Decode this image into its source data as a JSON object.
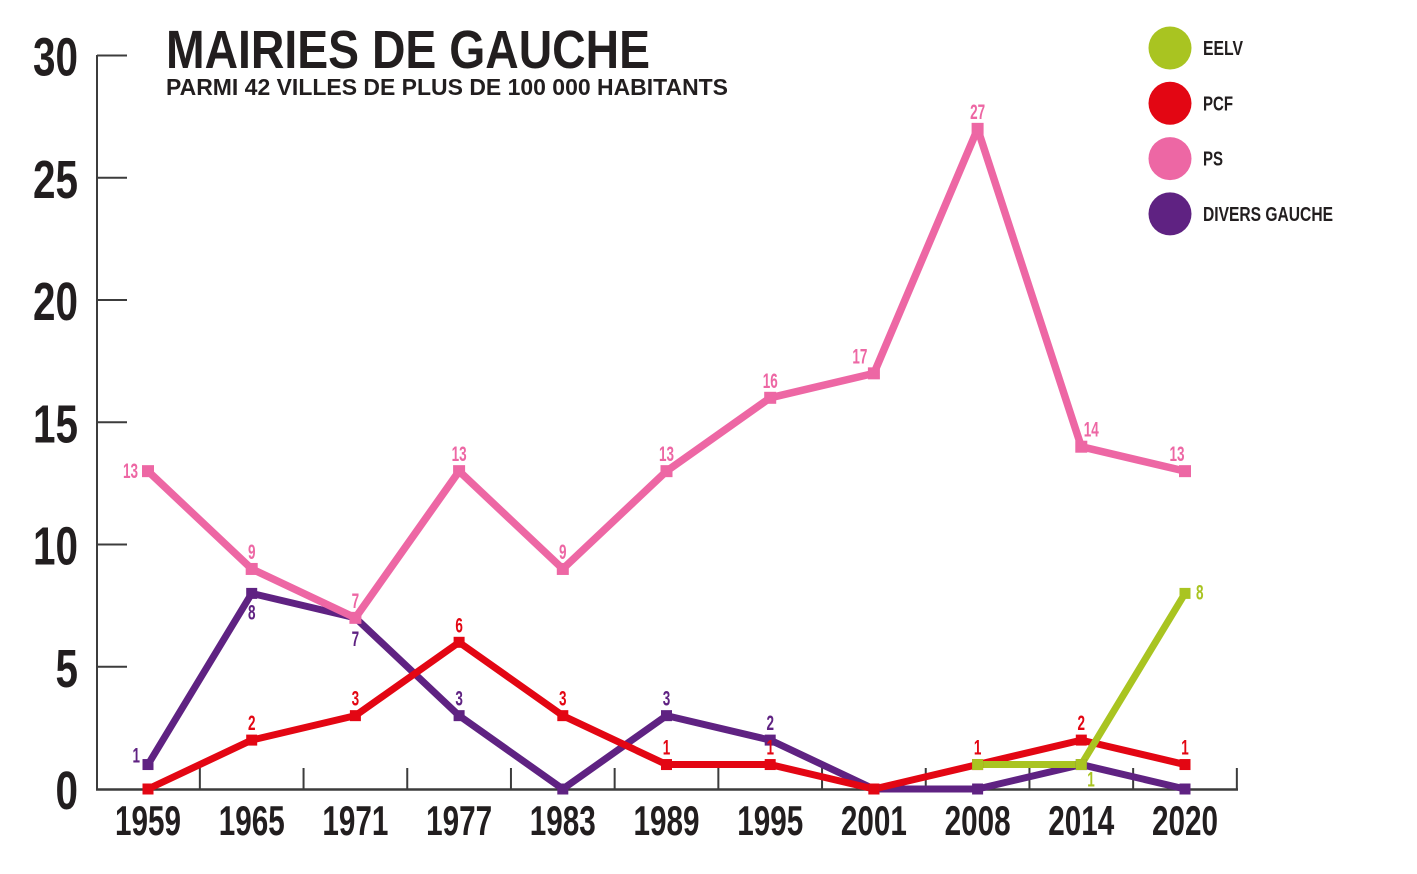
{
  "title": "MAIRIES DE GAUCHE",
  "subtitle": "PARMI 42 VILLES DE PLUS DE 100 000 HABITANTS",
  "colors": {
    "text": "#221e1f",
    "axis": "#3c3c3c",
    "background": "#ffffff",
    "eelv": "#a9c421",
    "pcf": "#e30613",
    "ps": "#ed67a4",
    "divers_gauche": "#5f2282"
  },
  "legend": {
    "position": "top-right",
    "items": [
      "EELV",
      "PCF",
      "PS",
      "DIVERS GAUCHE"
    ]
  },
  "chart_data": {
    "type": "line",
    "title": "MAIRIES DE GAUCHE",
    "subtitle": "PARMI 42 VILLES DE PLUS DE 100 000 HABITANTS",
    "x": [
      1959,
      1965,
      1971,
      1977,
      1983,
      1989,
      1995,
      2001,
      2008,
      2014,
      2020
    ],
    "xlabel": "",
    "ylabel": "",
    "ylim": [
      0,
      30
    ],
    "yticks": [
      0,
      5,
      10,
      15,
      20,
      25,
      30
    ],
    "grid": false,
    "legend_position": "top-right",
    "value_labels": "shown for non-zero points",
    "series": [
      {
        "name": "EELV",
        "color": "#a9c421",
        "values": [
          null,
          null,
          null,
          null,
          null,
          null,
          null,
          null,
          1,
          1,
          8
        ]
      },
      {
        "name": "PCF",
        "color": "#e30613",
        "values": [
          0,
          2,
          3,
          6,
          3,
          1,
          1,
          0,
          1,
          2,
          1
        ]
      },
      {
        "name": "PS",
        "color": "#ed67a4",
        "values": [
          13,
          9,
          7,
          13,
          9,
          13,
          16,
          17,
          27,
          14,
          13
        ]
      },
      {
        "name": "DIVERS GAUCHE",
        "color": "#5f2282",
        "values": [
          1,
          8,
          7,
          3,
          0,
          3,
          2,
          0,
          0,
          1,
          0
        ]
      }
    ]
  }
}
